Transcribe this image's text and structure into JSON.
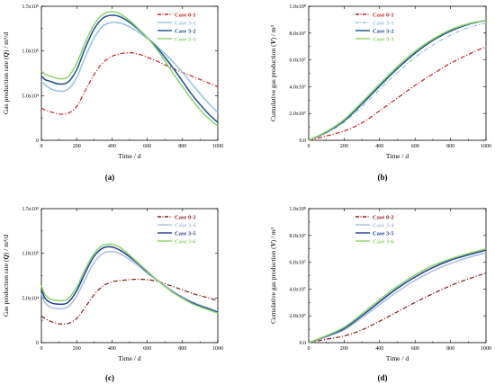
{
  "colors": {
    "case0": "#cc1f1a",
    "case1": "#8fc3e6",
    "case2": "#1a4f8b",
    "case3": "#8cd36a",
    "case0b": "#8b1a1a",
    "case4": "#a9bde6",
    "case5": "#1f3f94",
    "case6": "#8cd36a"
  },
  "chart_data": [
    {
      "panel": "(a)",
      "type": "line",
      "xlabel": "Time / d",
      "ylabel": "Gas production rate (Q) / m³/d",
      "xlim": [
        0,
        1000
      ],
      "ylim": [
        0,
        150000
      ],
      "xticks": [
        "0",
        "200",
        "400",
        "600",
        "800",
        "1000"
      ],
      "yticks": [
        "0",
        "5.0x10⁴",
        "1.0x10⁵",
        "1.5x10⁵"
      ],
      "legend_position": "top-right",
      "series": [
        {
          "name": "Case 0-1",
          "color_key": "case0",
          "dash": "dashdot",
          "x": [
            0,
            20,
            50,
            100,
            150,
            200,
            250,
            300,
            350,
            400,
            450,
            500,
            550,
            600,
            650,
            700,
            750,
            800,
            850,
            900,
            950,
            1000
          ],
          "y": [
            36000,
            34000,
            32000,
            29500,
            30000,
            38000,
            56000,
            74000,
            87000,
            94000,
            97000,
            98000,
            96500,
            93000,
            89000,
            84500,
            80000,
            76000,
            72000,
            68000,
            64000,
            60000
          ]
        },
        {
          "name": "Case 3-1",
          "color_key": "case1",
          "dash": "solid",
          "x": [
            0,
            20,
            50,
            100,
            150,
            200,
            250,
            300,
            350,
            400,
            450,
            500,
            550,
            600,
            650,
            700,
            750,
            800,
            850,
            900,
            950,
            1000
          ],
          "y": [
            66000,
            62000,
            58000,
            55000,
            57000,
            70000,
            94000,
            115000,
            128000,
            132000,
            131000,
            127000,
            121000,
            114000,
            106000,
            97000,
            87000,
            76000,
            64000,
            52000,
            41000,
            31000
          ]
        },
        {
          "name": "Case 3-2",
          "color_key": "case2",
          "dash": "solid",
          "x": [
            0,
            20,
            50,
            100,
            150,
            200,
            250,
            300,
            350,
            400,
            450,
            500,
            550,
            600,
            650,
            700,
            750,
            800,
            850,
            900,
            950,
            1000
          ],
          "y": [
            72000,
            68000,
            66000,
            63000,
            65000,
            79000,
            104000,
            125000,
            137000,
            140000,
            138000,
            132000,
            124000,
            115000,
            105000,
            93000,
            80000,
            66000,
            52000,
            40000,
            29000,
            20000
          ]
        },
        {
          "name": "Case 3-3",
          "color_key": "case3",
          "dash": "solid",
          "x": [
            0,
            20,
            50,
            100,
            150,
            200,
            250,
            300,
            350,
            400,
            450,
            500,
            550,
            600,
            650,
            700,
            750,
            800,
            850,
            900,
            950,
            1000
          ],
          "y": [
            78000,
            74000,
            72000,
            69000,
            71000,
            86000,
            110000,
            130000,
            141000,
            144000,
            141000,
            134000,
            125000,
            115000,
            103000,
            89000,
            74000,
            60000,
            46000,
            34000,
            24000,
            16000
          ]
        }
      ]
    },
    {
      "panel": "(b)",
      "type": "line",
      "xlabel": "Time / d",
      "ylabel": "Cumulative gas production (V) / m³",
      "xlim": [
        0,
        1000
      ],
      "ylim": [
        0,
        100000000
      ],
      "xticks": [
        "0",
        "200",
        "400",
        "600",
        "800",
        "1000"
      ],
      "yticks": [
        "0.0",
        "2.0x10⁷",
        "4.0x10⁷",
        "6.0x10⁷",
        "8.0x10⁷",
        "1.0x10⁸"
      ],
      "legend_position": "top-left",
      "series": [
        {
          "name": "Case 0-1",
          "color_key": "case0",
          "dash": "dashdot",
          "x": [
            0,
            100,
            200,
            300,
            400,
            500,
            600,
            700,
            800,
            900,
            1000
          ],
          "y": [
            0,
            3200000,
            7000000,
            13000000,
            22000000,
            31500000,
            41000000,
            49500000,
            57500000,
            64000000,
            70000000
          ]
        },
        {
          "name": "Case 3-1",
          "color_key": "case1",
          "dash": "dashdot",
          "x": [
            0,
            100,
            200,
            300,
            400,
            500,
            600,
            700,
            800,
            900,
            1000
          ],
          "y": [
            0,
            5500000,
            13500000,
            25000000,
            38000000,
            50500000,
            62000000,
            71000000,
            78500000,
            84000000,
            87500000
          ]
        },
        {
          "name": "Case 3-2",
          "color_key": "case2",
          "dash": "solid",
          "x": [
            0,
            100,
            200,
            300,
            400,
            500,
            600,
            700,
            800,
            900,
            1000
          ],
          "y": [
            0,
            6000000,
            14500000,
            27000000,
            40500000,
            53500000,
            65000000,
            74500000,
            81500000,
            86500000,
            89500000
          ]
        },
        {
          "name": "Case 3-3",
          "color_key": "case3",
          "dash": "solid",
          "x": [
            0,
            100,
            200,
            300,
            400,
            500,
            600,
            700,
            800,
            900,
            1000
          ],
          "y": [
            0,
            6500000,
            15500000,
            28500000,
            42000000,
            55000000,
            66500000,
            75500000,
            82500000,
            87000000,
            89500000
          ]
        }
      ]
    },
    {
      "panel": "(c)",
      "type": "line",
      "xlabel": "Time / d",
      "ylabel": "Gas production rate (Q) / m³/d",
      "xlim": [
        0,
        1000
      ],
      "ylim": [
        0,
        150000
      ],
      "xticks": [
        "0",
        "200",
        "400",
        "600",
        "800",
        "1000"
      ],
      "yticks": [
        "0",
        "5.0x10⁴",
        "1.0x10⁵",
        "1.5x10⁵"
      ],
      "legend_position": "top-right",
      "series": [
        {
          "name": "Case 0-2",
          "color_key": "case0b",
          "dash": "dashdot",
          "x": [
            0,
            20,
            50,
            100,
            150,
            200,
            250,
            300,
            350,
            400,
            450,
            500,
            550,
            600,
            650,
            700,
            750,
            800,
            850,
            900,
            950,
            1000
          ],
          "y": [
            30000,
            27000,
            24000,
            21000,
            21500,
            27000,
            40000,
            54000,
            63500,
            68000,
            69500,
            70500,
            71000,
            70500,
            69000,
            66000,
            62500,
            59000,
            55500,
            52500,
            50000,
            47000
          ]
        },
        {
          "name": "Case 3-4",
          "color_key": "case4",
          "dash": "solid",
          "x": [
            0,
            20,
            50,
            100,
            150,
            200,
            250,
            300,
            350,
            400,
            450,
            500,
            550,
            600,
            650,
            700,
            750,
            800,
            850,
            900,
            950,
            1000
          ],
          "y": [
            55000,
            45000,
            40000,
            38000,
            40000,
            52000,
            72000,
            90000,
            100000,
            102000,
            99000,
            93000,
            86000,
            78000,
            71000,
            64000,
            57000,
            51000,
            46000,
            42000,
            38500,
            35000
          ]
        },
        {
          "name": "Case 3-5",
          "color_key": "case5",
          "dash": "solid",
          "x": [
            0,
            20,
            50,
            100,
            150,
            200,
            250,
            300,
            350,
            400,
            450,
            500,
            550,
            600,
            650,
            700,
            750,
            800,
            850,
            900,
            950,
            1000
          ],
          "y": [
            60000,
            50000,
            45000,
            43000,
            45000,
            58000,
            79000,
            97000,
            106000,
            107000,
            103000,
            96000,
            88000,
            79000,
            71000,
            63000,
            56000,
            50000,
            45000,
            41000,
            37500,
            34000
          ]
        },
        {
          "name": "Case 3-6",
          "color_key": "case6",
          "dash": "solid",
          "x": [
            0,
            20,
            50,
            100,
            150,
            200,
            250,
            300,
            350,
            400,
            450,
            500,
            550,
            600,
            650,
            700,
            750,
            800,
            850,
            900,
            950,
            1000
          ],
          "y": [
            64000,
            54000,
            49000,
            47000,
            49000,
            62000,
            83000,
            100000,
            109000,
            110000,
            106000,
            98000,
            89000,
            80000,
            71000,
            63000,
            55500,
            49500,
            44000,
            40000,
            36500,
            33000
          ]
        }
      ]
    },
    {
      "panel": "(d)",
      "type": "line",
      "xlabel": "Time / d",
      "ylabel": "Cumulative gas production (V) / m³",
      "xlim": [
        0,
        1000
      ],
      "ylim": [
        0,
        100000000
      ],
      "xticks": [
        "0",
        "200",
        "400",
        "600",
        "800",
        "1000"
      ],
      "yticks": [
        "0.0",
        "2.0x10⁷",
        "4.0x10⁷",
        "6.0x10⁷",
        "8.0x10⁷",
        "1.0x10⁸"
      ],
      "legend_position": "top-left",
      "series": [
        {
          "name": "Case 0-2",
          "color_key": "case0b",
          "dash": "dashdot",
          "x": [
            0,
            100,
            200,
            300,
            400,
            500,
            600,
            700,
            800,
            900,
            1000
          ],
          "y": [
            0,
            2500000,
            5000000,
            9500000,
            16000000,
            23000000,
            30000000,
            36500000,
            42500000,
            47500000,
            52000000
          ]
        },
        {
          "name": "Case 3-4",
          "color_key": "case4",
          "dash": "solid",
          "x": [
            0,
            100,
            200,
            300,
            400,
            500,
            600,
            700,
            800,
            900,
            1000
          ],
          "y": [
            0,
            4300000,
            9500000,
            18500000,
            28500000,
            38000000,
            46500000,
            53500000,
            59000000,
            63500000,
            67000000
          ]
        },
        {
          "name": "Case 3-5",
          "color_key": "case5",
          "dash": "solid",
          "x": [
            0,
            100,
            200,
            300,
            400,
            500,
            600,
            700,
            800,
            900,
            1000
          ],
          "y": [
            0,
            4800000,
            10500000,
            20000000,
            30500000,
            40500000,
            49000000,
            56000000,
            61500000,
            65500000,
            69000000
          ]
        },
        {
          "name": "Case 3-6",
          "color_key": "case6",
          "dash": "solid",
          "x": [
            0,
            100,
            200,
            300,
            400,
            500,
            600,
            700,
            800,
            900,
            1000
          ],
          "y": [
            0,
            5200000,
            11500000,
            21500000,
            32000000,
            42000000,
            50500000,
            57500000,
            62500000,
            66500000,
            70000000
          ]
        }
      ]
    }
  ]
}
